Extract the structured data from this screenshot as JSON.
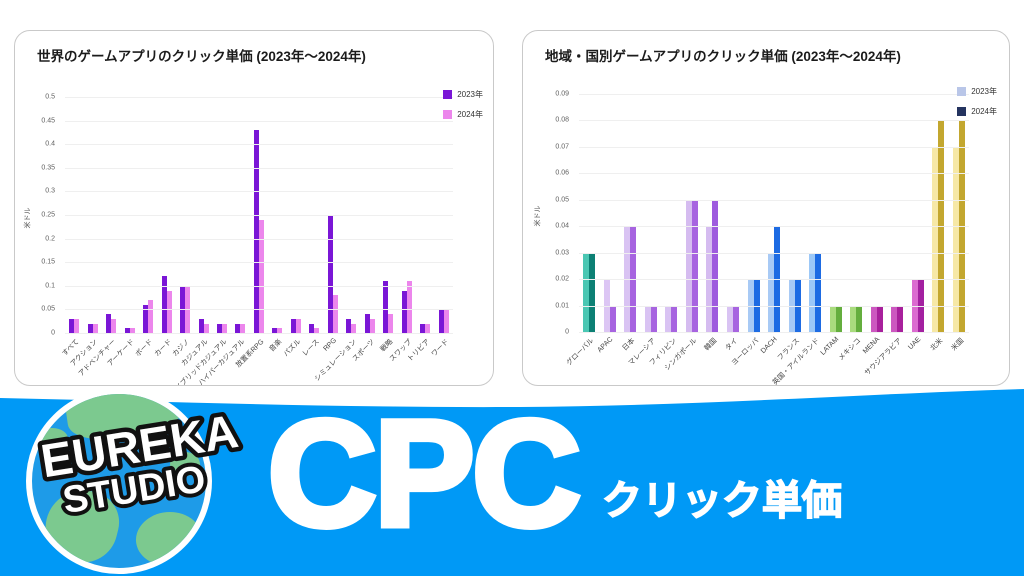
{
  "page": {
    "background": "#ffffff"
  },
  "banner": {
    "brand_line1": "EUREKA",
    "brand_line2": "STUDIO",
    "title": "CPC",
    "subtitle": "クリック単価",
    "bg_color": "#0099F6",
    "globe_icon": "globe-with-green-continents"
  },
  "chart_data": [
    {
      "type": "bar",
      "title": "世界のゲームアプリのクリック単価 (2023年～2024年)",
      "ylabel": "米ドル",
      "ylim": [
        0,
        0.5
      ],
      "ytick_labels": [
        "0.5",
        "0.45",
        "0.4",
        "0.35",
        "0.3",
        "0.25",
        "0.2",
        "0.15",
        "0.1",
        "0.05",
        "0"
      ],
      "grid": true,
      "legend_position": "top-right",
      "legend": [
        {
          "label": "2023年",
          "color": "#7A16D6"
        },
        {
          "label": "2024年",
          "color": "#EC86EC"
        }
      ],
      "categories": [
        "すべて",
        "アクション",
        "アドベンチャー",
        "アーケード",
        "ボード",
        "カード",
        "カジノ",
        "カジュアル",
        "ハイブリッドカジュアル",
        "ハイパーカジュアル",
        "放置系RPG",
        "音楽",
        "パズル",
        "レース",
        "RPG",
        "シミュレーション",
        "スポーツ",
        "戦略",
        "スワップ",
        "トリビア",
        "ワード"
      ],
      "series": [
        {
          "name": "2023年",
          "color": "#7A16D6",
          "values": [
            0.03,
            0.02,
            0.04,
            0.01,
            0.06,
            0.12,
            0.1,
            0.03,
            0.02,
            0.02,
            0.43,
            0.01,
            0.03,
            0.02,
            0.25,
            0.03,
            0.04,
            0.11,
            0.09,
            0.02,
            0.05
          ]
        },
        {
          "name": "2024年",
          "color": "#EC86EC",
          "values": [
            0.03,
            0.02,
            0.03,
            0.01,
            0.07,
            0.09,
            0.1,
            0.02,
            0.02,
            0.02,
            0.24,
            0.01,
            0.03,
            0.01,
            0.08,
            0.02,
            0.03,
            0.04,
            0.11,
            0.02,
            0.05
          ]
        }
      ]
    },
    {
      "type": "bar",
      "title": "地域・国別ゲームアプリのクリック単価 (2023年～2024年)",
      "ylabel": "米ドル",
      "ylim": [
        0,
        0.09
      ],
      "ytick_labels": [
        "0.09",
        "0.08",
        "0.07",
        "0.06",
        "0.05",
        "0.04",
        "0.03",
        "0.02",
        "0.01",
        "0"
      ],
      "grid": true,
      "legend_position": "top-right",
      "legend": [
        {
          "label": "2023年",
          "color": "#B9C6E8"
        },
        {
          "label": "2024年",
          "color": "#24335F"
        }
      ],
      "categories": [
        "グローバル",
        "APAC",
        "日本",
        "マレーシア",
        "フィリピン",
        "シンガポール",
        "韓国",
        "タイ",
        "ヨーロッパ",
        "DACH",
        "フランス",
        "英国・アイルランド",
        "LATAM",
        "メキシコ",
        "MENA",
        "サウジアラビア",
        "UAE",
        "北米",
        "米国"
      ],
      "series": [
        {
          "name": "2023年",
          "color": null,
          "values": [
            0.03,
            0.02,
            0.04,
            0.01,
            0.01,
            0.05,
            0.04,
            0.01,
            0.02,
            0.03,
            0.02,
            0.03,
            0.01,
            0.01,
            0.01,
            0.01,
            0.02,
            0.07,
            0.07
          ]
        },
        {
          "name": "2024年",
          "color": null,
          "values": [
            0.03,
            0.01,
            0.04,
            0.01,
            0.01,
            0.05,
            0.05,
            0.01,
            0.02,
            0.04,
            0.02,
            0.03,
            0.01,
            0.01,
            0.01,
            0.01,
            0.02,
            0.08,
            0.08
          ]
        }
      ],
      "bar_colors": [
        [
          "#4AC7B3",
          "#0C8074"
        ],
        [
          "#DCC6F4",
          "#A764E0"
        ],
        [
          "#D9C3F3",
          "#A764E0"
        ],
        [
          "#D9C3F3",
          "#A764E0"
        ],
        [
          "#D9C3F3",
          "#A764E0"
        ],
        [
          "#D5BCF0",
          "#A764E0"
        ],
        [
          "#D5BCF0",
          "#9E5BDE"
        ],
        [
          "#D9C3F3",
          "#A764E0"
        ],
        [
          "#A8CAF5",
          "#1D6BE3"
        ],
        [
          "#A8CAF5",
          "#1D6BE3"
        ],
        [
          "#A8CAF5",
          "#1D6BE3"
        ],
        [
          "#9CC8F7",
          "#1D6BE3"
        ],
        [
          "#A9DB7E",
          "#64AE3E"
        ],
        [
          "#A9DB7E",
          "#64AE3E"
        ],
        [
          "#CC58C0",
          "#A8209C"
        ],
        [
          "#CC58C0",
          "#A8209C"
        ],
        [
          "#DB6BD0",
          "#A320A0"
        ],
        [
          "#F6E8A6",
          "#C3A72F"
        ],
        [
          "#F6E8A6",
          "#C3A72F"
        ]
      ]
    }
  ]
}
